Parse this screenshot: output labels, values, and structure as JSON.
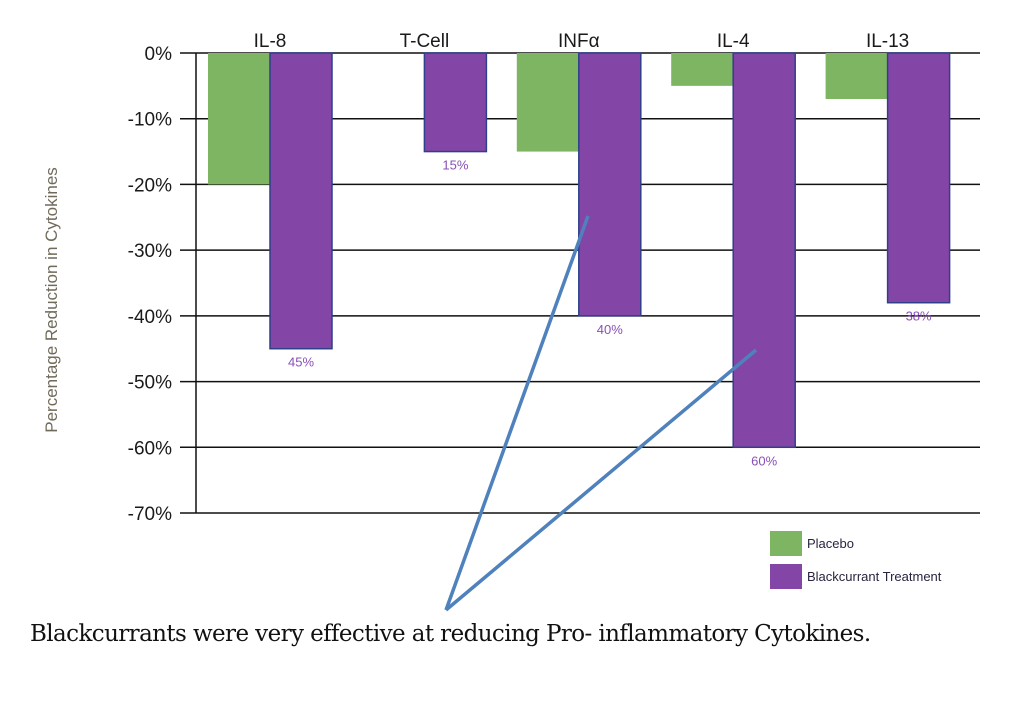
{
  "chart_data": {
    "type": "bar",
    "title": "",
    "xlabel": "",
    "ylabel": "Percentage Reduction in Cytokines",
    "categories": [
      "IL-8",
      "T-Cell",
      "INFα",
      "IL-4",
      "IL-13"
    ],
    "series": [
      {
        "name": "Placebo",
        "color": "#7db562",
        "values": [
          -20,
          null,
          -15,
          -5,
          -7
        ]
      },
      {
        "name": "Blackcurrant Treatment",
        "color": "#8446a6",
        "values": [
          -45,
          -15,
          -40,
          -60,
          -38
        ]
      }
    ],
    "data_labels": [
      "45%",
      "15%",
      "40%",
      "60%",
      "38%"
    ],
    "yticks": [
      0,
      -10,
      -20,
      -30,
      -40,
      -50,
      -60,
      -70
    ],
    "ytick_labels": [
      "0%",
      "-10%",
      "-20%",
      "-30%",
      "-40%",
      "-50%",
      "-60%",
      "-70%"
    ],
    "ylim": [
      -70,
      0
    ],
    "grid": true,
    "legend_position": "bottom-right",
    "annotation_arrows": {
      "from": "caption",
      "to": [
        "INFα",
        "IL-4"
      ],
      "color": "#4f81bd"
    }
  },
  "caption": "Blackcurrants were very effective at reducing Pro- inflammatory Cytokines."
}
